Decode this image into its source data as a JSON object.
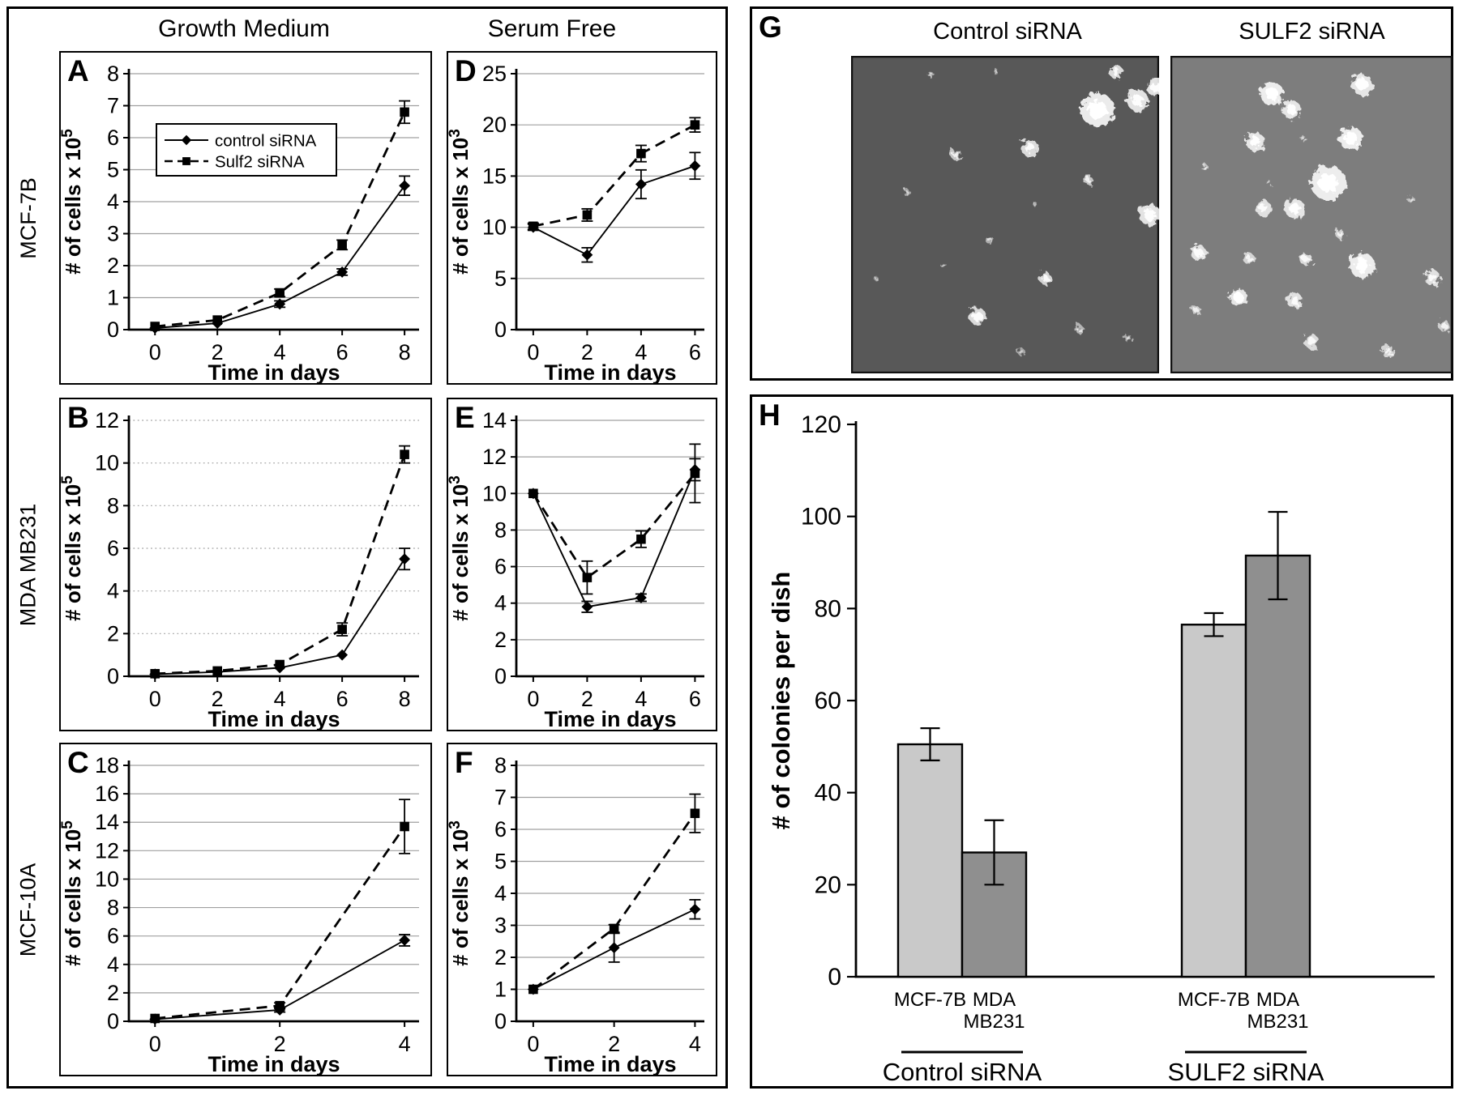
{
  "figure_titles": {
    "growth_medium": "Growth Medium",
    "serum_free": "Serum Free",
    "row_labels": [
      "MCF-7B",
      "MDA MB231",
      "MCF-10A"
    ]
  },
  "panel_g": {
    "letter": "G",
    "image_titles": [
      "Control siRNA",
      "SULF2 siRNA"
    ]
  },
  "legend": {
    "entries": [
      "control siRNA",
      "Sulf2 siRNA"
    ]
  },
  "chart_data": [
    {
      "panel": "A",
      "type": "line",
      "row": "MCF-7B",
      "column": "Growth Medium",
      "xlabel": "Time in days",
      "ylabel": "# of cells x 10^5",
      "ylabel_base": "# of cells x 10",
      "ylabel_exp": "5",
      "x": [
        0,
        2,
        4,
        6,
        8
      ],
      "ylim": [
        0,
        8
      ],
      "ytick_step": 1,
      "grid": "solid",
      "show_legend": true,
      "series": [
        {
          "name": "control siRNA",
          "style": "solid-diamond",
          "values": [
            0.05,
            0.2,
            0.8,
            1.8,
            4.5
          ],
          "errors": [
            0,
            0,
            0.1,
            0.1,
            0.3
          ]
        },
        {
          "name": "Sulf2 siRNA",
          "style": "dashed-square",
          "values": [
            0.1,
            0.3,
            1.15,
            2.65,
            6.8
          ],
          "errors": [
            0,
            0,
            0.12,
            0.15,
            0.35
          ]
        }
      ]
    },
    {
      "panel": "B",
      "type": "line",
      "row": "MDA MB231",
      "column": "Growth Medium",
      "xlabel": "Time in days",
      "ylabel": "# of cells x 10^5",
      "ylabel_base": "# of cells x 10",
      "ylabel_exp": "5",
      "x": [
        0,
        2,
        4,
        6,
        8
      ],
      "ylim": [
        0,
        12
      ],
      "ytick_step": 2,
      "grid": "dotted",
      "show_legend": false,
      "series": [
        {
          "name": "control siRNA",
          "style": "solid-diamond",
          "values": [
            0.1,
            0.2,
            0.4,
            1.0,
            5.5
          ],
          "errors": [
            0,
            0,
            0,
            0,
            0.5
          ]
        },
        {
          "name": "Sulf2 siRNA",
          "style": "dashed-square",
          "values": [
            0.12,
            0.25,
            0.55,
            2.2,
            10.4
          ],
          "errors": [
            0,
            0,
            0,
            0.3,
            0.4
          ]
        }
      ]
    },
    {
      "panel": "C",
      "type": "line",
      "row": "MCF-10A",
      "column": "Growth Medium",
      "xlabel": "Time in days",
      "ylabel": "# of cells x 10^5",
      "ylabel_base": "# of cells x 10",
      "ylabel_exp": "5",
      "x": [
        0,
        2,
        4
      ],
      "ylim": [
        0,
        18
      ],
      "ytick_step": 2,
      "grid": "solid",
      "show_legend": false,
      "series": [
        {
          "name": "control siRNA",
          "style": "solid-diamond",
          "values": [
            0.15,
            0.8,
            5.7
          ],
          "errors": [
            0,
            0.15,
            0.4
          ]
        },
        {
          "name": "Sulf2 siRNA",
          "style": "dashed-square",
          "values": [
            0.2,
            1.1,
            13.7
          ],
          "errors": [
            0,
            0.2,
            1.9
          ]
        }
      ]
    },
    {
      "panel": "D",
      "type": "line",
      "row": "MCF-7B",
      "column": "Serum Free",
      "xlabel": "Time in days",
      "ylabel": "# of cells x 10^3",
      "ylabel_base": "# of cells x 10",
      "ylabel_exp": "3",
      "x": [
        0,
        2,
        4,
        6
      ],
      "ylim": [
        0,
        25
      ],
      "ytick_step": 5,
      "grid": "solid",
      "show_legend": false,
      "series": [
        {
          "name": "control siRNA",
          "style": "solid-diamond",
          "values": [
            10,
            7.3,
            14.2,
            16.0
          ],
          "errors": [
            0.3,
            0.7,
            1.4,
            1.3
          ]
        },
        {
          "name": "Sulf2 siRNA",
          "style": "dashed-square",
          "values": [
            10.1,
            11.2,
            17.2,
            20.0
          ],
          "errors": [
            0.3,
            0.6,
            0.8,
            0.7
          ]
        }
      ]
    },
    {
      "panel": "E",
      "type": "line",
      "row": "MDA MB231",
      "column": "Serum Free",
      "xlabel": "Time in days",
      "ylabel": "# of cells x 10^3",
      "ylabel_base": "# of cells x 10",
      "ylabel_exp": "3",
      "x": [
        0,
        2,
        4,
        6
      ],
      "ylim": [
        0,
        14
      ],
      "ytick_step": 2,
      "grid": "solid",
      "show_legend": false,
      "series": [
        {
          "name": "control siRNA",
          "style": "solid-diamond",
          "values": [
            10,
            3.8,
            4.3,
            11.3
          ],
          "errors": [
            0,
            0.3,
            0.2,
            0.6
          ]
        },
        {
          "name": "Sulf2 siRNA",
          "style": "dashed-square",
          "values": [
            10,
            5.4,
            7.5,
            11.1
          ],
          "errors": [
            0,
            0.9,
            0.45,
            1.6
          ]
        }
      ]
    },
    {
      "panel": "F",
      "type": "line",
      "row": "MCF-10A",
      "column": "Serum Free",
      "xlabel": "Time in days",
      "ylabel": "# of cells x 10^3",
      "ylabel_base": "# of cells x 10",
      "ylabel_exp": "3",
      "x": [
        0,
        2,
        4
      ],
      "ylim": [
        0,
        8
      ],
      "ytick_step": 1,
      "grid": "solid",
      "show_legend": false,
      "series": [
        {
          "name": "control siRNA",
          "style": "solid-diamond",
          "values": [
            1.0,
            2.3,
            3.5
          ],
          "errors": [
            0,
            0.45,
            0.3
          ]
        },
        {
          "name": "Sulf2 siRNA",
          "style": "dashed-square",
          "values": [
            1.0,
            2.9,
            6.5
          ],
          "errors": [
            0,
            0.12,
            0.6
          ]
        }
      ]
    },
    {
      "panel": "H",
      "type": "bar",
      "ylabel": "# of colonies per dish",
      "ylim": [
        0,
        120
      ],
      "ytick_step": 20,
      "bar_colors": {
        "light": "#c9c9c9",
        "dark": "#8f8f8f"
      },
      "groups": [
        {
          "label": "Control siRNA",
          "bars": [
            {
              "label": "MCF-7B",
              "label_lines": [
                "MCF-7B"
              ],
              "value": 50.5,
              "error": 3.5,
              "shade": "light"
            },
            {
              "label": "MDA MB231",
              "label_lines": [
                "MDA",
                "MB231"
              ],
              "value": 27,
              "error": 7,
              "shade": "dark"
            }
          ]
        },
        {
          "label": "SULF2 siRNA",
          "bars": [
            {
              "label": "MCF-7B",
              "label_lines": [
                "MCF-7B"
              ],
              "value": 76.5,
              "error": 2.5,
              "shade": "light"
            },
            {
              "label": "MDA MB231",
              "label_lines": [
                "MDA",
                "MB231"
              ],
              "value": 91.5,
              "error": 9.5,
              "shade": "dark"
            }
          ]
        }
      ]
    }
  ],
  "colony_images": [
    {
      "title": "Control siRNA",
      "bg": "#585858",
      "colonies": [
        [
          0.8,
          0.17,
          0.055,
          0.95
        ],
        [
          0.93,
          0.14,
          0.035,
          0.9
        ],
        [
          0.86,
          0.05,
          0.022,
          0.85
        ],
        [
          0.99,
          0.1,
          0.03,
          0.9
        ],
        [
          0.26,
          0.06,
          0.01,
          0.5
        ],
        [
          0.47,
          0.05,
          0.009,
          0.45
        ],
        [
          0.58,
          0.29,
          0.028,
          0.85
        ],
        [
          0.34,
          0.31,
          0.018,
          0.7
        ],
        [
          0.77,
          0.39,
          0.016,
          0.7
        ],
        [
          0.97,
          0.5,
          0.035,
          0.9
        ],
        [
          0.6,
          0.47,
          0.007,
          0.5
        ],
        [
          0.18,
          0.43,
          0.011,
          0.5
        ],
        [
          0.45,
          0.58,
          0.013,
          0.55
        ],
        [
          0.3,
          0.66,
          0.009,
          0.45
        ],
        [
          0.63,
          0.7,
          0.02,
          0.8
        ],
        [
          0.41,
          0.82,
          0.028,
          0.85
        ],
        [
          0.74,
          0.86,
          0.014,
          0.6
        ],
        [
          0.9,
          0.89,
          0.012,
          0.55
        ],
        [
          0.55,
          0.93,
          0.012,
          0.5
        ],
        [
          0.08,
          0.7,
          0.007,
          0.4
        ]
      ]
    },
    {
      "title": "SULF2 siRNA",
      "bg": "#7d7d7d",
      "colonies": [
        [
          0.36,
          0.12,
          0.042,
          0.95
        ],
        [
          0.43,
          0.17,
          0.033,
          0.9
        ],
        [
          0.68,
          0.09,
          0.038,
          0.9
        ],
        [
          0.3,
          0.27,
          0.033,
          0.9
        ],
        [
          0.64,
          0.26,
          0.042,
          0.95
        ],
        [
          0.56,
          0.4,
          0.062,
          0.95
        ],
        [
          0.44,
          0.48,
          0.035,
          0.9
        ],
        [
          0.33,
          0.48,
          0.028,
          0.85
        ],
        [
          0.12,
          0.35,
          0.012,
          0.6
        ],
        [
          0.47,
          0.26,
          0.009,
          0.5
        ],
        [
          0.6,
          0.56,
          0.016,
          0.7
        ],
        [
          0.1,
          0.62,
          0.028,
          0.85
        ],
        [
          0.28,
          0.64,
          0.02,
          0.75
        ],
        [
          0.48,
          0.64,
          0.022,
          0.8
        ],
        [
          0.68,
          0.66,
          0.045,
          0.95
        ],
        [
          0.93,
          0.7,
          0.028,
          0.85
        ],
        [
          0.24,
          0.76,
          0.032,
          0.9
        ],
        [
          0.44,
          0.77,
          0.028,
          0.85
        ],
        [
          0.09,
          0.8,
          0.016,
          0.65
        ],
        [
          0.97,
          0.85,
          0.02,
          0.7
        ],
        [
          0.5,
          0.9,
          0.026,
          0.8
        ],
        [
          0.77,
          0.93,
          0.022,
          0.75
        ],
        [
          0.35,
          0.4,
          0.008,
          0.5
        ],
        [
          0.85,
          0.45,
          0.012,
          0.55
        ]
      ]
    }
  ]
}
